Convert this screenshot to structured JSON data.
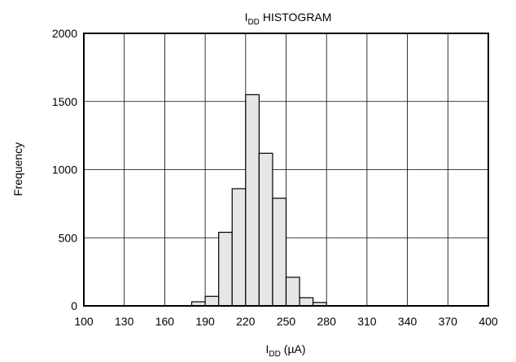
{
  "chart_data": {
    "type": "bar",
    "title": "HISTOGRAM",
    "title_symbol": "I",
    "title_subscript": "DD",
    "xlabel_symbol": "I",
    "xlabel_subscript": "DD",
    "xlabel_unit": "(µA)",
    "ylabel": "Frequency",
    "xlim": [
      100,
      400
    ],
    "ylim": [
      0,
      2000
    ],
    "xticks": [
      "100",
      "130",
      "160",
      "190",
      "220",
      "250",
      "280",
      "310",
      "340",
      "370",
      "400"
    ],
    "yticks": [
      "0",
      "500",
      "1000",
      "1500",
      "2000"
    ],
    "grid": true,
    "bin_width": 10,
    "bins": [
      {
        "x0": 180,
        "x1": 190,
        "value": 30
      },
      {
        "x0": 190,
        "x1": 200,
        "value": 70
      },
      {
        "x0": 200,
        "x1": 210,
        "value": 540
      },
      {
        "x0": 210,
        "x1": 220,
        "value": 860
      },
      {
        "x0": 220,
        "x1": 230,
        "value": 1550
      },
      {
        "x0": 230,
        "x1": 240,
        "value": 1120
      },
      {
        "x0": 240,
        "x1": 250,
        "value": 790
      },
      {
        "x0": 250,
        "x1": 260,
        "value": 210
      },
      {
        "x0": 260,
        "x1": 270,
        "value": 60
      },
      {
        "x0": 270,
        "x1": 280,
        "value": 25
      }
    ],
    "colors": {
      "bar_fill": "#e6e6e6",
      "bar_stroke": "#000000"
    }
  }
}
